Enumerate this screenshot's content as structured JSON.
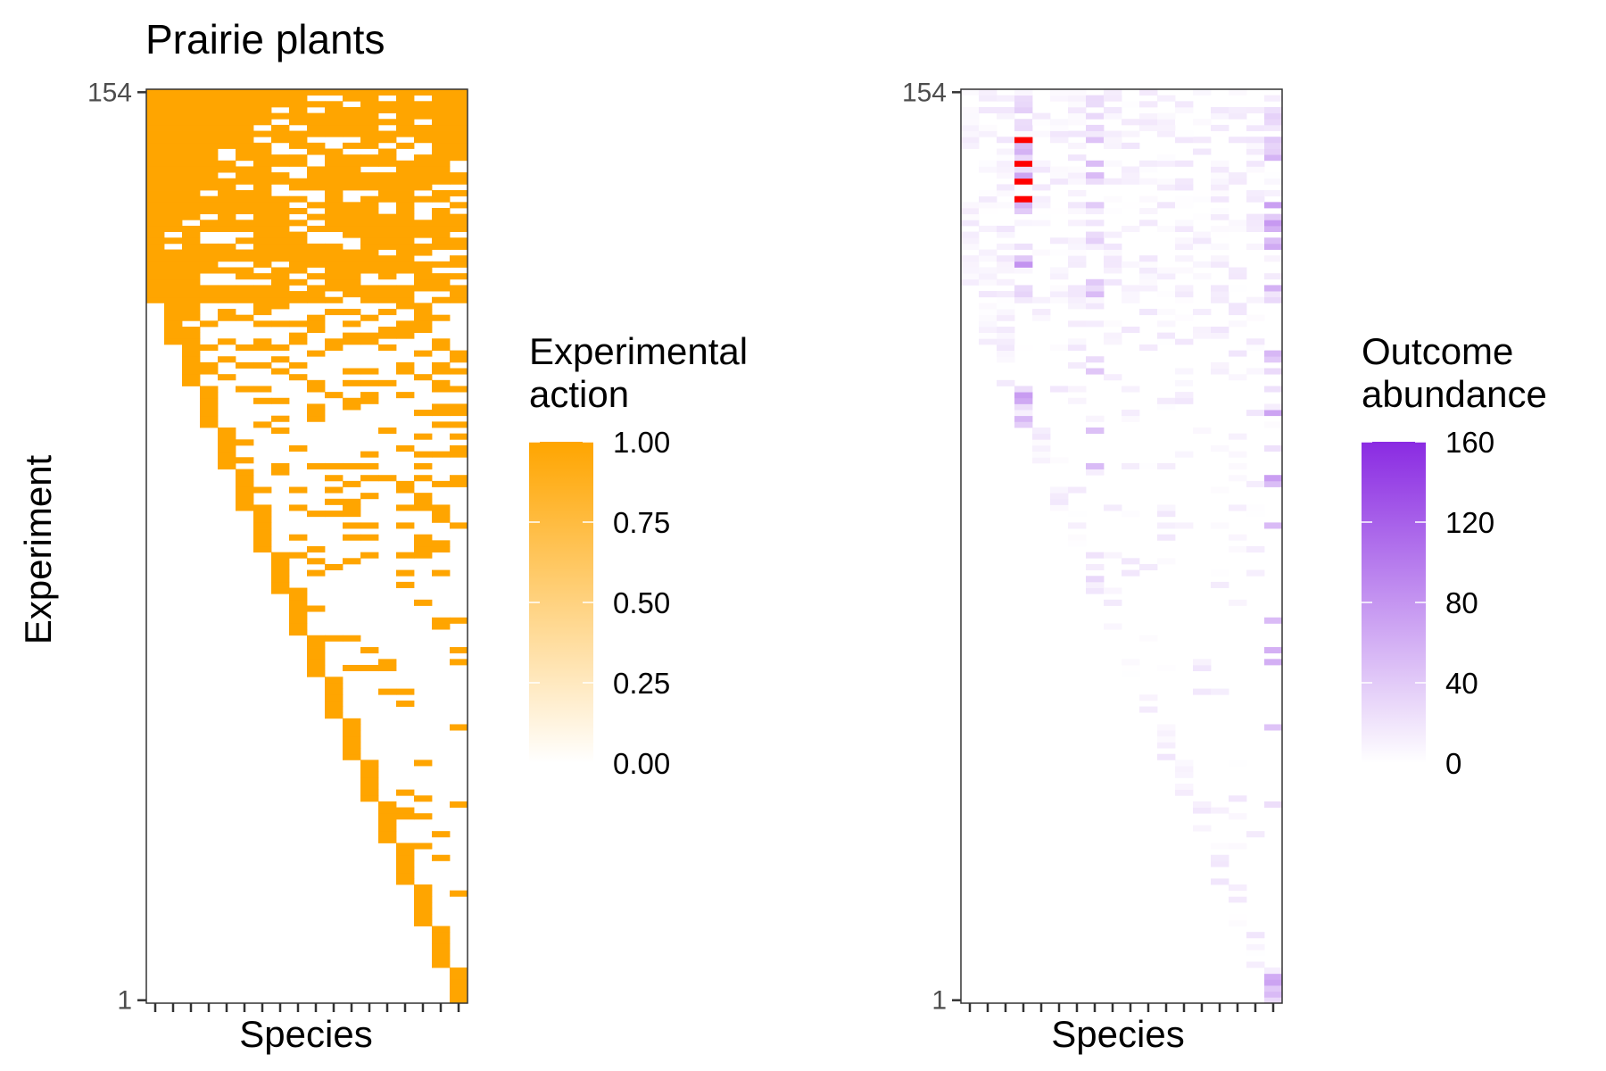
{
  "figure": {
    "title": "Prairie plants",
    "ylabel": "Experiment",
    "xlabel_left": "Species",
    "xlabel_right": "Species"
  },
  "colors": {
    "action_high": "#FFA500",
    "action_low": "#FFFFFF",
    "abundance_high": "#8A2BE2",
    "abundance_low": "#FFFFFF",
    "abundance_over_limit": "#FF0000",
    "panel_border": "#333333",
    "tick_color": "#333333",
    "axis_text": "#4D4D4D"
  },
  "chart_data": [
    {
      "type": "heatmap",
      "name": "Experimental action",
      "title": "Prairie plants",
      "xlabel": "Species",
      "ylabel": "Experiment",
      "x_count": 18,
      "y_range": [
        1,
        154
      ],
      "y_ticks": [
        "1",
        "154"
      ],
      "fill_range": [
        0,
        1
      ],
      "legend_title": "Experimental\naction",
      "legend_ticks": [
        "0.00",
        "0.25",
        "0.50",
        "0.75",
        "1.00"
      ],
      "legend_tick_values": [
        0,
        0.25,
        0.5,
        0.75,
        1
      ],
      "grid": false,
      "legend_position": "right",
      "pattern": "binary presence/absence; experiment 154 includes all 18 species, lower experiments include fewer species with staircase structure (first included species index increases as experiment number decreases)"
    },
    {
      "type": "heatmap",
      "name": "Outcome abundance",
      "xlabel": "Species",
      "x_count": 18,
      "y_range": [
        1,
        154
      ],
      "y_ticks": [
        "1",
        "154"
      ],
      "fill_range": [
        0,
        160
      ],
      "legend_title": "Outcome\nabundance",
      "legend_ticks": [
        "0",
        "40",
        "80",
        "120",
        "160"
      ],
      "legend_tick_values": [
        0,
        40,
        80,
        120,
        160
      ],
      "out_of_range_color": "#FF0000",
      "grid": false,
      "legend_position": "right",
      "pattern": "abundance mostly low, strongest in species 4 (with several values above 160 shown in red), species 8 and species 18"
    }
  ]
}
